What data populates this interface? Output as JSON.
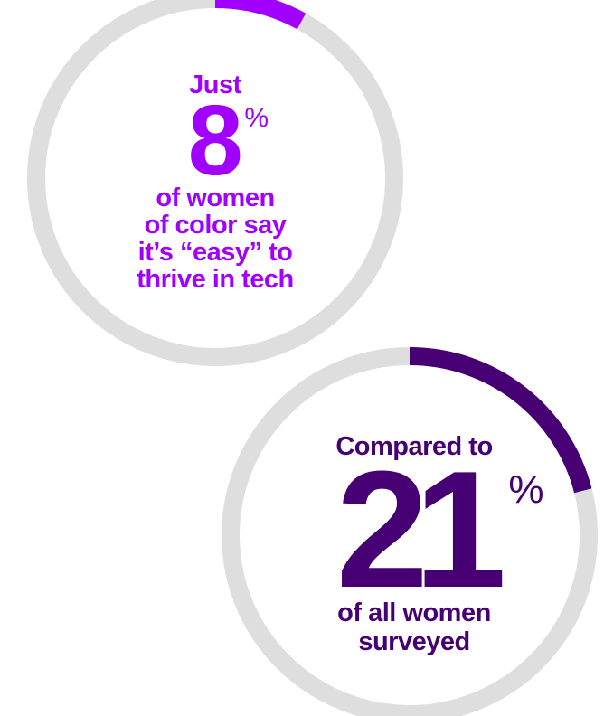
{
  "chart_data": [
    {
      "type": "pie",
      "values": [
        8,
        92
      ],
      "value_color": "#a100ff",
      "track_color": "#dedede",
      "pre_text": "Just",
      "number": "8",
      "unit": "%",
      "description": [
        "of women",
        "of color say",
        "it’s “easy” to",
        "thrive in tech"
      ]
    },
    {
      "type": "pie",
      "values": [
        21,
        79
      ],
      "value_color": "#460073",
      "track_color": "#dedede",
      "pre_text": "Compared to",
      "number": "21",
      "unit": "%",
      "description": [
        "of all women",
        "surveyed"
      ]
    }
  ]
}
